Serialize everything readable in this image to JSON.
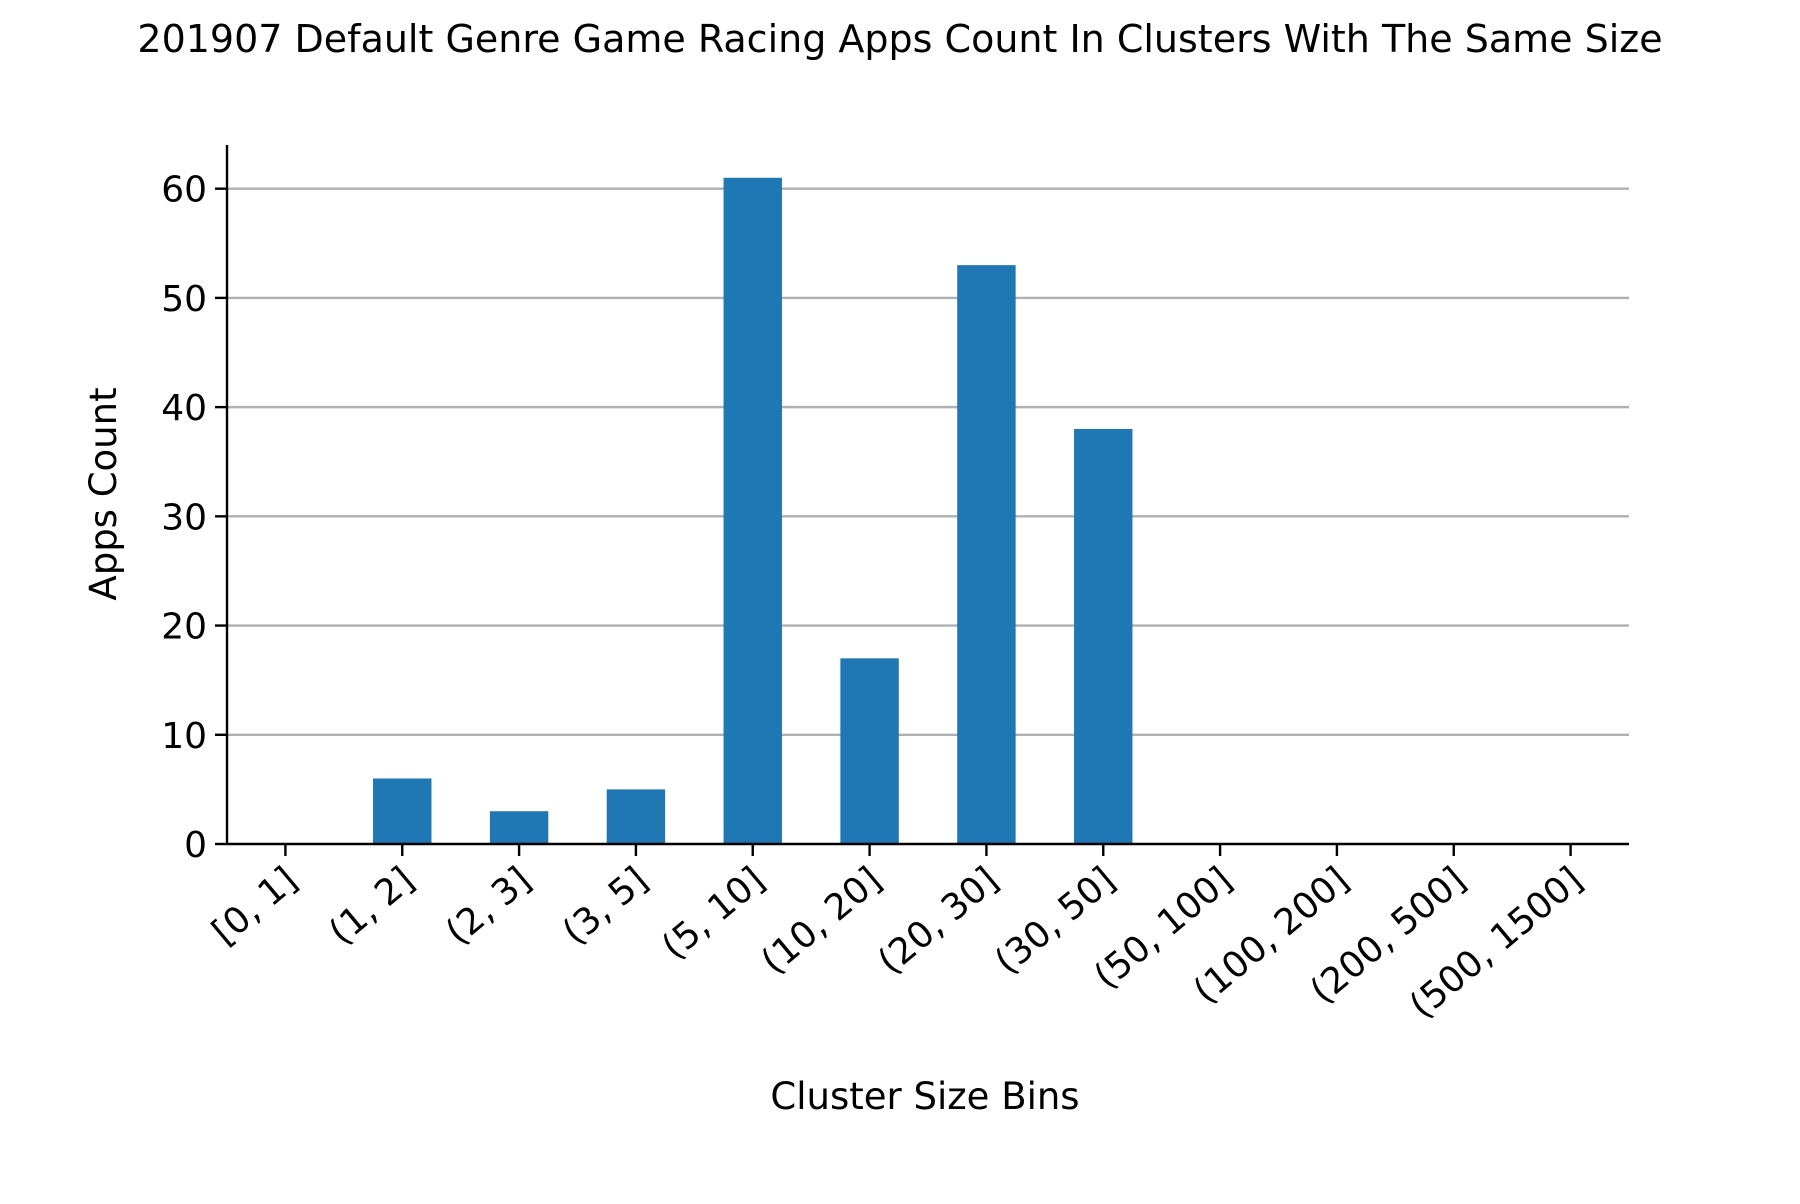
{
  "chart_data": {
    "type": "bar",
    "title": "201907 Default Genre Game Racing Apps Count In Clusters With The Same Size",
    "xlabel": "Cluster Size Bins",
    "ylabel": "Apps Count",
    "categories": [
      "[0, 1]",
      "(1, 2]",
      "(2, 3]",
      "(3, 5]",
      "(5, 10]",
      "(10, 20]",
      "(20, 30]",
      "(30, 50]",
      "(50, 100]",
      "(100, 200]",
      "(200, 500]",
      "(500, 1500]"
    ],
    "values": [
      0,
      6,
      3,
      5,
      61,
      17,
      53,
      38,
      0,
      0,
      0,
      0
    ],
    "ylim": [
      0,
      64
    ],
    "yticks": [
      0,
      10,
      20,
      30,
      40,
      50,
      60
    ],
    "grid": "y-major",
    "legend": "none",
    "bar_color": "#1f77b4"
  }
}
